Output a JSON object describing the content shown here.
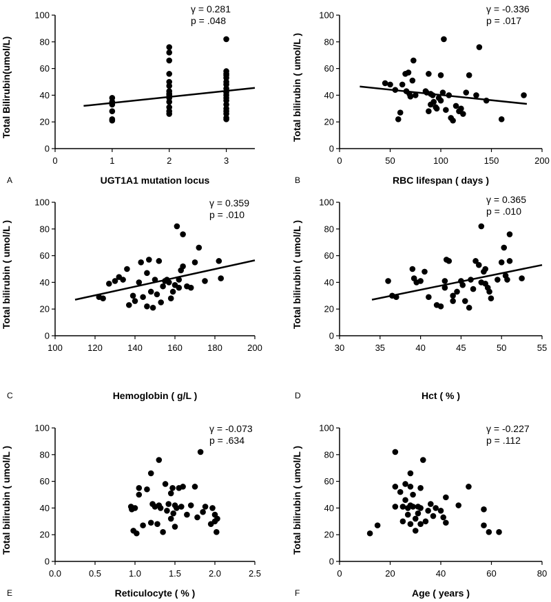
{
  "chart_data": [
    {
      "panel": "A",
      "type": "scatter",
      "xlabel": "UGT1A1 mutation locus",
      "ylabel": "Total Bilirubin(umol/L)",
      "xlim": [
        0,
        3.5
      ],
      "ylim": [
        0,
        100
      ],
      "xticks": [
        0,
        1,
        2,
        3
      ],
      "xtick_labels": [
        "0",
        "1",
        "2",
        "3"
      ],
      "yticks": [
        0,
        20,
        40,
        60,
        80,
        100
      ],
      "annotation": [
        "γ = 0.281",
        "p = .048"
      ],
      "trendline": {
        "x": [
          0.5,
          3.5
        ],
        "y": [
          32,
          45.5
        ]
      },
      "points": [
        [
          1,
          38
        ],
        [
          1,
          35
        ],
        [
          1,
          33
        ],
        [
          1,
          28
        ],
        [
          1,
          22
        ],
        [
          1,
          21
        ],
        [
          2,
          76
        ],
        [
          2,
          72
        ],
        [
          2,
          66
        ],
        [
          2,
          56
        ],
        [
          2,
          50
        ],
        [
          2,
          47
        ],
        [
          2,
          43
        ],
        [
          2,
          41
        ],
        [
          2,
          40
        ],
        [
          2,
          38
        ],
        [
          2,
          35
        ],
        [
          2,
          31
        ],
        [
          2,
          28
        ],
        [
          2,
          26
        ],
        [
          3,
          82
        ],
        [
          3,
          58
        ],
        [
          3,
          56
        ],
        [
          3,
          55
        ],
        [
          3,
          53
        ],
        [
          3,
          50
        ],
        [
          3,
          48
        ],
        [
          3,
          45
        ],
        [
          3,
          42
        ],
        [
          3,
          40
        ],
        [
          3,
          38
        ],
        [
          3,
          36
        ],
        [
          3,
          33
        ],
        [
          3,
          30
        ],
        [
          3,
          28
        ],
        [
          3,
          26
        ],
        [
          3,
          23
        ],
        [
          3,
          22
        ]
      ]
    },
    {
      "panel": "B",
      "type": "scatter",
      "xlabel": "RBC lifespan ( days )",
      "ylabel": "Total bilirubin ( umol/L )",
      "xlim": [
        0,
        200
      ],
      "ylim": [
        0,
        100
      ],
      "xticks": [
        0,
        50,
        100,
        150,
        200
      ],
      "xtick_labels": [
        "0",
        "50",
        "100",
        "150",
        "200"
      ],
      "yticks": [
        0,
        20,
        40,
        60,
        80,
        100
      ],
      "annotation": [
        "γ = -0.336",
        "p = .017"
      ],
      "trendline": {
        "x": [
          20,
          185
        ],
        "y": [
          46.5,
          33.5
        ]
      },
      "points": [
        [
          45,
          49
        ],
        [
          50,
          48
        ],
        [
          55,
          44
        ],
        [
          58,
          22
        ],
        [
          60,
          27
        ],
        [
          62,
          48
        ],
        [
          65,
          56
        ],
        [
          66,
          43
        ],
        [
          68,
          57
        ],
        [
          69,
          41
        ],
        [
          70,
          39
        ],
        [
          72,
          51
        ],
        [
          73,
          66
        ],
        [
          75,
          40
        ],
        [
          85,
          43
        ],
        [
          86,
          42
        ],
        [
          88,
          56
        ],
        [
          88,
          28
        ],
        [
          90,
          41
        ],
        [
          90,
          33
        ],
        [
          92,
          40
        ],
        [
          93,
          35
        ],
        [
          95,
          31
        ],
        [
          96,
          30
        ],
        [
          98,
          38
        ],
        [
          100,
          55
        ],
        [
          100,
          36
        ],
        [
          102,
          42
        ],
        [
          103,
          82
        ],
        [
          105,
          29
        ],
        [
          108,
          40
        ],
        [
          110,
          23
        ],
        [
          112,
          21
        ],
        [
          115,
          32
        ],
        [
          118,
          28
        ],
        [
          120,
          30
        ],
        [
          122,
          26
        ],
        [
          125,
          42
        ],
        [
          128,
          55
        ],
        [
          135,
          40
        ],
        [
          138,
          76
        ],
        [
          145,
          36
        ],
        [
          160,
          22
        ],
        [
          182,
          40
        ]
      ]
    },
    {
      "panel": "C",
      "type": "scatter",
      "xlabel": "Hemoglobin ( g/L )",
      "ylabel": "Total bilirubin ( umol/L )",
      "xlim": [
        100,
        200
      ],
      "ylim": [
        0,
        100
      ],
      "xticks": [
        100,
        120,
        140,
        160,
        180,
        200
      ],
      "xtick_labels": [
        "100",
        "120",
        "140",
        "160",
        "180",
        "200"
      ],
      "yticks": [
        0,
        20,
        40,
        60,
        80,
        100
      ],
      "annotation": [
        "γ = 0.359",
        "p = .010"
      ],
      "trendline": {
        "x": [
          110,
          200
        ],
        "y": [
          27,
          56.5
        ]
      },
      "points": [
        [
          122,
          29
        ],
        [
          124,
          28
        ],
        [
          127,
          39
        ],
        [
          130,
          41
        ],
        [
          132,
          44
        ],
        [
          134,
          42
        ],
        [
          136,
          50
        ],
        [
          137,
          23
        ],
        [
          139,
          30
        ],
        [
          140,
          26
        ],
        [
          142,
          40
        ],
        [
          143,
          55
        ],
        [
          144,
          29
        ],
        [
          146,
          22
        ],
        [
          146,
          47
        ],
        [
          147,
          57
        ],
        [
          148,
          33
        ],
        [
          149,
          21
        ],
        [
          150,
          42
        ],
        [
          151,
          31
        ],
        [
          152,
          56
        ],
        [
          153,
          25
        ],
        [
          154,
          37
        ],
        [
          155,
          41
        ],
        [
          156,
          42
        ],
        [
          157,
          40
        ],
        [
          158,
          28
        ],
        [
          159,
          33
        ],
        [
          160,
          38
        ],
        [
          161,
          82
        ],
        [
          162,
          42
        ],
        [
          162,
          36
        ],
        [
          163,
          49
        ],
        [
          164,
          52
        ],
        [
          164,
          76
        ],
        [
          166,
          37
        ],
        [
          168,
          36
        ],
        [
          170,
          55
        ],
        [
          172,
          66
        ],
        [
          175,
          41
        ],
        [
          182,
          56
        ],
        [
          183,
          43
        ]
      ]
    },
    {
      "panel": "D",
      "type": "scatter",
      "xlabel": "Hct ( % )",
      "ylabel": "Total bilirubin ( umol/L )",
      "xlim": [
        30,
        55
      ],
      "ylim": [
        0,
        100
      ],
      "xticks": [
        30,
        35,
        40,
        45,
        50,
        55
      ],
      "xtick_labels": [
        "30",
        "35",
        "40",
        "45",
        "50",
        "55"
      ],
      "yticks": [
        0,
        20,
        40,
        60,
        80,
        100
      ],
      "annotation": [
        "γ = 0.365",
        "p = .010"
      ],
      "trendline": {
        "x": [
          34,
          55
        ],
        "y": [
          27,
          53
        ]
      },
      "points": [
        [
          36,
          41
        ],
        [
          36.5,
          30
        ],
        [
          37,
          29
        ],
        [
          39,
          50
        ],
        [
          39.2,
          43
        ],
        [
          39.5,
          40
        ],
        [
          40,
          41
        ],
        [
          40.5,
          48
        ],
        [
          41,
          29
        ],
        [
          42,
          23
        ],
        [
          42.5,
          22
        ],
        [
          43,
          41
        ],
        [
          43,
          36
        ],
        [
          43.2,
          57
        ],
        [
          43.5,
          56
        ],
        [
          44,
          30
        ],
        [
          44,
          26
        ],
        [
          44.5,
          33
        ],
        [
          45,
          41
        ],
        [
          45.2,
          38
        ],
        [
          45.5,
          26
        ],
        [
          46,
          21
        ],
        [
          46.2,
          42
        ],
        [
          46.5,
          35
        ],
        [
          46.8,
          56
        ],
        [
          47.2,
          53
        ],
        [
          47.5,
          82
        ],
        [
          47.5,
          40
        ],
        [
          47.8,
          48
        ],
        [
          48,
          50
        ],
        [
          48,
          39
        ],
        [
          48.3,
          36
        ],
        [
          48.5,
          33
        ],
        [
          48.7,
          28
        ],
        [
          49.5,
          42
        ],
        [
          50,
          55
        ],
        [
          50.3,
          66
        ],
        [
          50.5,
          45
        ],
        [
          50.7,
          42
        ],
        [
          51,
          76
        ],
        [
          51,
          56
        ],
        [
          52.5,
          43
        ]
      ]
    },
    {
      "panel": "E",
      "type": "scatter",
      "xlabel": "Reticulocyte ( % )",
      "ylabel": "Total bilirubin ( umol/L )",
      "xlim": [
        0,
        2.5
      ],
      "ylim": [
        0,
        100
      ],
      "xticks": [
        0,
        0.5,
        1.0,
        1.5,
        2.0,
        2.5
      ],
      "xtick_labels": [
        "0.0",
        "0.5",
        "1.0",
        "1.5",
        "2.0",
        "2.5"
      ],
      "yticks": [
        0,
        20,
        40,
        60,
        80,
        100
      ],
      "annotation": [
        "γ = -0.073",
        "p = .634"
      ],
      "points": [
        [
          0.95,
          41
        ],
        [
          0.96,
          39
        ],
        [
          0.98,
          23
        ],
        [
          1.0,
          40
        ],
        [
          1.02,
          21
        ],
        [
          1.05,
          50
        ],
        [
          1.05,
          55
        ],
        [
          1.1,
          27
        ],
        [
          1.15,
          54
        ],
        [
          1.2,
          29
        ],
        [
          1.2,
          66
        ],
        [
          1.22,
          43
        ],
        [
          1.25,
          41
        ],
        [
          1.28,
          28
        ],
        [
          1.3,
          76
        ],
        [
          1.3,
          42
        ],
        [
          1.32,
          40
        ],
        [
          1.35,
          22
        ],
        [
          1.38,
          58
        ],
        [
          1.4,
          38
        ],
        [
          1.42,
          43
        ],
        [
          1.45,
          32
        ],
        [
          1.45,
          51
        ],
        [
          1.47,
          55
        ],
        [
          1.48,
          36
        ],
        [
          1.5,
          26
        ],
        [
          1.5,
          42
        ],
        [
          1.52,
          40
        ],
        [
          1.55,
          55
        ],
        [
          1.58,
          41
        ],
        [
          1.6,
          56
        ],
        [
          1.65,
          35
        ],
        [
          1.7,
          42
        ],
        [
          1.75,
          56
        ],
        [
          1.78,
          33
        ],
        [
          1.82,
          82
        ],
        [
          1.85,
          37
        ],
        [
          1.88,
          41
        ],
        [
          1.95,
          28
        ],
        [
          1.97,
          40
        ],
        [
          2.0,
          30
        ],
        [
          2.0,
          35
        ],
        [
          2.02,
          22
        ],
        [
          2.03,
          32
        ]
      ]
    },
    {
      "panel": "F",
      "type": "scatter",
      "xlabel": "Age ( years )",
      "ylabel": "Total bilirubin ( umol/L )",
      "xlim": [
        0,
        80
      ],
      "ylim": [
        0,
        100
      ],
      "xticks": [
        0,
        20,
        40,
        60,
        80
      ],
      "xtick_labels": [
        "0",
        "20",
        "40",
        "60",
        "80"
      ],
      "yticks": [
        0,
        20,
        40,
        60,
        80,
        100
      ],
      "annotation": [
        "γ = -0.227",
        "p = .112"
      ],
      "points": [
        [
          12,
          21
        ],
        [
          15,
          27
        ],
        [
          22,
          82
        ],
        [
          22,
          56
        ],
        [
          22,
          41
        ],
        [
          24,
          52
        ],
        [
          25,
          30
        ],
        [
          25,
          41
        ],
        [
          26,
          58
        ],
        [
          26,
          46
        ],
        [
          27,
          40
        ],
        [
          27,
          35
        ],
        [
          28,
          66
        ],
        [
          28,
          56
        ],
        [
          28,
          42
        ],
        [
          28,
          28
        ],
        [
          29,
          41
        ],
        [
          29,
          50
        ],
        [
          30,
          23
        ],
        [
          30,
          32
        ],
        [
          31,
          36
        ],
        [
          31,
          41
        ],
        [
          32,
          28
        ],
        [
          32,
          40
        ],
        [
          32,
          55
        ],
        [
          33,
          76
        ],
        [
          34,
          30
        ],
        [
          35,
          38
        ],
        [
          36,
          43
        ],
        [
          37,
          34
        ],
        [
          38,
          40
        ],
        [
          40,
          38
        ],
        [
          41,
          33
        ],
        [
          42,
          29
        ],
        [
          42,
          48
        ],
        [
          47,
          42
        ],
        [
          51,
          56
        ],
        [
          57,
          39
        ],
        [
          57,
          27
        ],
        [
          59,
          22
        ],
        [
          63,
          22
        ]
      ]
    }
  ]
}
